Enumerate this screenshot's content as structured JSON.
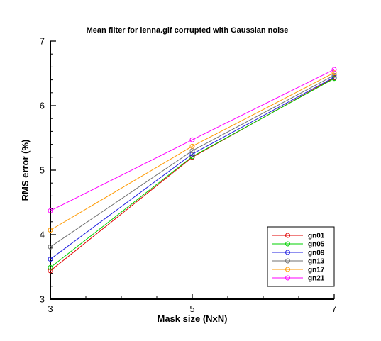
{
  "chart_data": {
    "type": "line",
    "title": "Mean filter for lenna.gif corrupted with Gaussian noise",
    "xlabel": "Mask size (NxN)",
    "ylabel": "RMS error (%)",
    "x": [
      3,
      5,
      7
    ],
    "x_ticks": [
      "3",
      "5",
      "7"
    ],
    "y_ticks": [
      "3",
      "4",
      "5",
      "6",
      "7"
    ],
    "xlim": [
      3,
      7
    ],
    "ylim": [
      3,
      7
    ],
    "grid": false,
    "legend_position": "bottom-right",
    "marker": "open-circle",
    "series": [
      {
        "name": "gn01",
        "color": "#e00000",
        "values": [
          3.44,
          5.2,
          6.43
        ]
      },
      {
        "name": "gn05",
        "color": "#00d000",
        "values": [
          3.49,
          5.21,
          6.42
        ]
      },
      {
        "name": "gn09",
        "color": "#2020e0",
        "values": [
          3.62,
          5.25,
          6.44
        ]
      },
      {
        "name": "gn13",
        "color": "#707070",
        "values": [
          3.81,
          5.3,
          6.47
        ]
      },
      {
        "name": "gn17",
        "color": "#ff9900",
        "values": [
          4.07,
          5.37,
          6.51
        ]
      },
      {
        "name": "gn21",
        "color": "#ff00ff",
        "values": [
          4.37,
          5.47,
          6.56
        ]
      }
    ]
  }
}
